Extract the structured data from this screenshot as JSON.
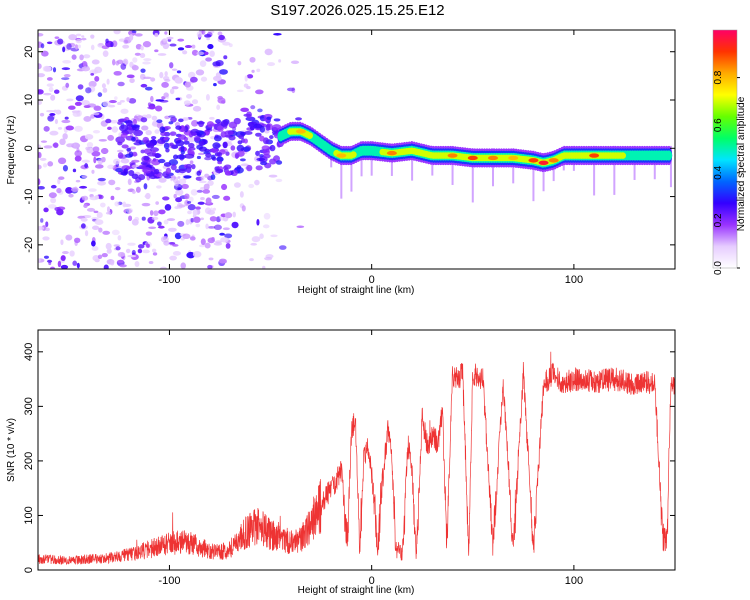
{
  "title": "S197.2026.025.15.25.E12",
  "chart_data": [
    {
      "type": "heatmap",
      "title": "S197.2026.025.15.25.E12",
      "xlabel": "Height of straight line (km)",
      "ylabel": "Frequency (Hz)",
      "xlim": [
        -165,
        150
      ],
      "ylim": [
        -25,
        24.5
      ],
      "xticks": [
        -100,
        0,
        100
      ],
      "yticks": [
        -20,
        -10,
        0,
        10,
        20
      ],
      "colorbar": {
        "label": "Normalized spectral amplitude",
        "range": [
          0,
          1
        ],
        "ticks": [
          0.0,
          0.2,
          0.4,
          0.6,
          0.8
        ],
        "tick_labels": [
          "0.0",
          "0.2",
          "0.4",
          "0.6",
          "0.8"
        ],
        "colormap": [
          "#ffffff",
          "#e6ccff",
          "#9933ff",
          "#3300ff",
          "#0066ff",
          "#00e5ff",
          "#00ff66",
          "#66ff00",
          "#ffff00",
          "#ffaa00",
          "#ff3300",
          "#ff0066"
        ]
      },
      "ridge": {
        "x": [
          -45,
          -40,
          -35,
          -30,
          -25,
          -20,
          -15,
          -10,
          -5,
          0,
          10,
          20,
          30,
          40,
          50,
          60,
          70,
          80,
          85,
          90,
          95,
          100,
          110,
          120,
          130,
          140,
          148
        ],
        "y": [
          2.5,
          3.5,
          3.5,
          2.5,
          1,
          -0.5,
          -1.5,
          -1.5,
          -0.5,
          -0.5,
          -1,
          -0.5,
          -1.5,
          -1.5,
          -2,
          -2,
          -2,
          -2.5,
          -3,
          -2.5,
          -1.5,
          -1.5,
          -1.5,
          -1.5,
          -1.5,
          -1.5,
          -1.5
        ],
        "amplitude": [
          0.55,
          0.75,
          0.8,
          0.7,
          0.65,
          0.6,
          0.8,
          0.75,
          0.6,
          0.55,
          0.85,
          0.7,
          0.7,
          0.85,
          0.9,
          0.85,
          0.8,
          0.9,
          0.95,
          0.85,
          0.7,
          0.75,
          0.9,
          0.75,
          0.65,
          0.6,
          0.55
        ]
      },
      "noise_extent_km": [
        -165,
        -40
      ]
    },
    {
      "type": "line",
      "xlabel": "Height of straight line (km)",
      "ylabel": "SNR (10 * v/v)",
      "xlim": [
        -165,
        150
      ],
      "ylim": [
        0,
        440
      ],
      "xticks": [
        -100,
        0,
        100
      ],
      "yticks": [
        0,
        100,
        200,
        300,
        400
      ],
      "color": "#ee3333",
      "series": [
        {
          "name": "SNR",
          "x": [
            -165,
            -150,
            -140,
            -130,
            -120,
            -110,
            -100,
            -95,
            -90,
            -85,
            -80,
            -75,
            -70,
            -65,
            -60,
            -55,
            -50,
            -45,
            -40,
            -35,
            -30,
            -25,
            -20,
            -15,
            -12,
            -10,
            -8,
            -6,
            -4,
            -2,
            0,
            3,
            5,
            8,
            10,
            12,
            15,
            18,
            20,
            22,
            25,
            28,
            30,
            33,
            35,
            37,
            40,
            42,
            45,
            48,
            50,
            55,
            60,
            65,
            70,
            75,
            80,
            85,
            90,
            95,
            100,
            110,
            120,
            130,
            140,
            144,
            146,
            148,
            150
          ],
          "y": [
            20,
            18,
            20,
            22,
            28,
            38,
            48,
            52,
            50,
            42,
            35,
            32,
            40,
            58,
            75,
            80,
            65,
            60,
            50,
            55,
            85,
            120,
            150,
            180,
            60,
            250,
            280,
            40,
            200,
            230,
            180,
            30,
            150,
            260,
            200,
            40,
            30,
            230,
            180,
            20,
            280,
            220,
            250,
            230,
            300,
            40,
            360,
            350,
            360,
            40,
            360,
            350,
            40,
            350,
            40,
            360,
            40,
            340,
            360,
            340,
            350,
            345,
            350,
            340,
            345,
            60,
            55,
            350,
            340
          ]
        }
      ]
    }
  ]
}
